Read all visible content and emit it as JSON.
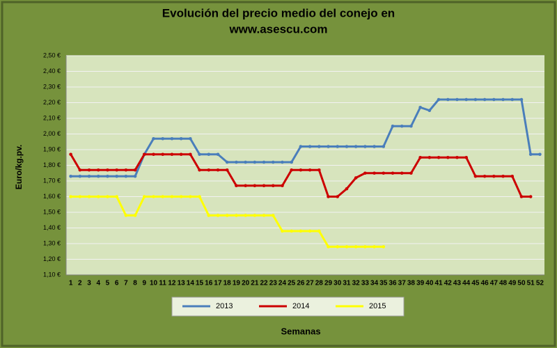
{
  "chart_data": {
    "type": "line",
    "title": [
      "Evolución del precio medio del conejo en",
      "www.asescu.com"
    ],
    "xlabel": "Semanas",
    "ylabel": "Euro/kg.pv.",
    "categories": [
      "1",
      "2",
      "3",
      "4",
      "5",
      "6",
      "7",
      "8",
      "9",
      "10",
      "11",
      "12",
      "13",
      "14",
      "15",
      "16",
      "17",
      "18",
      "19",
      "20",
      "21",
      "22",
      "23",
      "24",
      "25",
      "26",
      "27",
      "28",
      "29",
      "30",
      "31",
      "32",
      "33",
      "34",
      "35",
      "36",
      "37",
      "38",
      "39",
      "40",
      "41",
      "42",
      "43",
      "44",
      "45",
      "46",
      "47",
      "48",
      "49",
      "50",
      "51",
      "52"
    ],
    "series": [
      {
        "name": "2013",
        "color": "#4a7ebb",
        "values": [
          1.73,
          1.73,
          1.73,
          1.73,
          1.73,
          1.73,
          1.73,
          1.73,
          1.87,
          1.97,
          1.97,
          1.97,
          1.97,
          1.97,
          1.87,
          1.87,
          1.87,
          1.82,
          1.82,
          1.82,
          1.82,
          1.82,
          1.82,
          1.82,
          1.82,
          1.92,
          1.92,
          1.92,
          1.92,
          1.92,
          1.92,
          1.92,
          1.92,
          1.92,
          1.92,
          2.05,
          2.05,
          2.05,
          2.17,
          2.15,
          2.22,
          2.22,
          2.22,
          2.22,
          2.22,
          2.22,
          2.22,
          2.22,
          2.22,
          2.22,
          1.87,
          1.87
        ]
      },
      {
        "name": "2014",
        "color": "#cc0000",
        "values": [
          1.87,
          1.77,
          1.77,
          1.77,
          1.77,
          1.77,
          1.77,
          1.77,
          1.87,
          1.87,
          1.87,
          1.87,
          1.87,
          1.87,
          1.77,
          1.77,
          1.77,
          1.77,
          1.67,
          1.67,
          1.67,
          1.67,
          1.67,
          1.67,
          1.77,
          1.77,
          1.77,
          1.77,
          1.6,
          1.6,
          1.65,
          1.72,
          1.75,
          1.75,
          1.75,
          1.75,
          1.75,
          1.75,
          1.85,
          1.85,
          1.85,
          1.85,
          1.85,
          1.85,
          1.73,
          1.73,
          1.73,
          1.73,
          1.73,
          1.6,
          1.6,
          null
        ]
      },
      {
        "name": "2015",
        "color": "#ffff00",
        "values": [
          1.6,
          1.6,
          1.6,
          1.6,
          1.6,
          1.6,
          1.48,
          1.48,
          1.6,
          1.6,
          1.6,
          1.6,
          1.6,
          1.6,
          1.6,
          1.48,
          1.48,
          1.48,
          1.48,
          1.48,
          1.48,
          1.48,
          1.48,
          1.38,
          1.38,
          1.38,
          1.38,
          1.38,
          1.28,
          1.28,
          1.28,
          1.28,
          1.28,
          1.28,
          1.28,
          null,
          null,
          null,
          null,
          null,
          null,
          null,
          null,
          null,
          null,
          null,
          null,
          null,
          null,
          null,
          null,
          null
        ]
      }
    ],
    "ylim": [
      1.1,
      2.5
    ],
    "yticks": [
      {
        "value": 1.1,
        "label": "1,10 €"
      },
      {
        "value": 1.2,
        "label": "1,20 €"
      },
      {
        "value": 1.3,
        "label": "1,30 €"
      },
      {
        "value": 1.4,
        "label": "1,40 €"
      },
      {
        "value": 1.5,
        "label": "1,50 €"
      },
      {
        "value": 1.6,
        "label": "1,60 €"
      },
      {
        "value": 1.7,
        "label": "1,70 €"
      },
      {
        "value": 1.8,
        "label": "1,80 €"
      },
      {
        "value": 1.9,
        "label": "1,90 €"
      },
      {
        "value": 2.0,
        "label": "2,00 €"
      },
      {
        "value": 2.1,
        "label": "2,10 €"
      },
      {
        "value": 2.2,
        "label": "2,20 €"
      },
      {
        "value": 2.3,
        "label": "2,30 €"
      },
      {
        "value": 2.4,
        "label": "2,40 €"
      },
      {
        "value": 2.5,
        "label": "2,50 €"
      }
    ],
    "grid": true,
    "legend": "bottom"
  }
}
